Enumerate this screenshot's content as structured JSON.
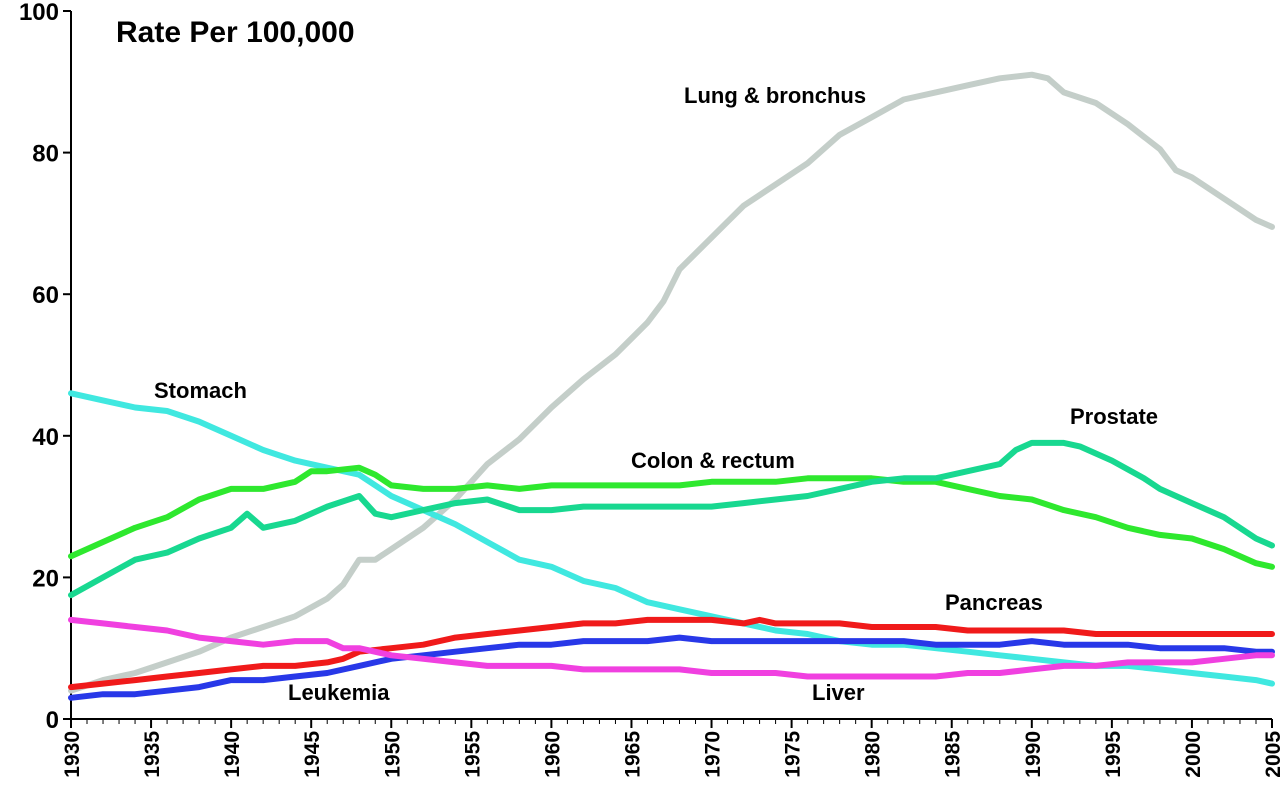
{
  "chart_data": {
    "type": "line",
    "title": "Rate Per 100,000",
    "xlabel": "",
    "ylabel": "",
    "xlim": [
      1930,
      2005
    ],
    "ylim": [
      0,
      100
    ],
    "y_ticks": [
      0,
      20,
      40,
      60,
      80,
      100
    ],
    "x_tick_labels": [
      "1930",
      "1935",
      "1940",
      "1945",
      "1950",
      "1955",
      "1960",
      "1965",
      "1970",
      "1975",
      "1980",
      "1985",
      "1990",
      "1995",
      "2000",
      "2005"
    ],
    "grid": false,
    "legend": "none (direct labels)",
    "series": [
      {
        "name": "Lung & bronchus",
        "color": "#c4cec9",
        "points": [
          [
            1930,
            4
          ],
          [
            1932,
            5.5
          ],
          [
            1934,
            6.5
          ],
          [
            1936,
            8
          ],
          [
            1938,
            9.5
          ],
          [
            1940,
            11.5
          ],
          [
            1942,
            13
          ],
          [
            1944,
            14.5
          ],
          [
            1946,
            17
          ],
          [
            1947,
            19
          ],
          [
            1948,
            22.5
          ],
          [
            1949,
            22.5
          ],
          [
            1950,
            24
          ],
          [
            1952,
            27
          ],
          [
            1954,
            31
          ],
          [
            1956,
            36
          ],
          [
            1958,
            39.5
          ],
          [
            1960,
            44
          ],
          [
            1962,
            48
          ],
          [
            1964,
            51.5
          ],
          [
            1966,
            56
          ],
          [
            1967,
            59
          ],
          [
            1968,
            63.5
          ],
          [
            1970,
            68
          ],
          [
            1972,
            72.5
          ],
          [
            1974,
            75.5
          ],
          [
            1976,
            78.5
          ],
          [
            1978,
            82.5
          ],
          [
            1980,
            85
          ],
          [
            1982,
            87.5
          ],
          [
            1984,
            88.5
          ],
          [
            1986,
            89.5
          ],
          [
            1988,
            90.5
          ],
          [
            1990,
            91
          ],
          [
            1991,
            90.5
          ],
          [
            1992,
            88.5
          ],
          [
            1994,
            87
          ],
          [
            1996,
            84
          ],
          [
            1998,
            80.5
          ],
          [
            1999,
            77.5
          ],
          [
            2000,
            76.5
          ],
          [
            2002,
            73.5
          ],
          [
            2004,
            70.5
          ],
          [
            2005,
            69.5
          ]
        ]
      },
      {
        "name": "Stomach",
        "color": "#40e8e0",
        "points": [
          [
            1930,
            46
          ],
          [
            1932,
            45
          ],
          [
            1934,
            44
          ],
          [
            1936,
            43.5
          ],
          [
            1938,
            42
          ],
          [
            1940,
            40
          ],
          [
            1942,
            38
          ],
          [
            1944,
            36.5
          ],
          [
            1946,
            35.5
          ],
          [
            1948,
            34.5
          ],
          [
            1949,
            33
          ],
          [
            1950,
            31.5
          ],
          [
            1952,
            29.5
          ],
          [
            1954,
            27.5
          ],
          [
            1956,
            25
          ],
          [
            1958,
            22.5
          ],
          [
            1960,
            21.5
          ],
          [
            1962,
            19.5
          ],
          [
            1964,
            18.5
          ],
          [
            1966,
            16.5
          ],
          [
            1968,
            15.5
          ],
          [
            1970,
            14.5
          ],
          [
            1972,
            13.5
          ],
          [
            1974,
            12.5
          ],
          [
            1976,
            12
          ],
          [
            1978,
            11
          ],
          [
            1980,
            10.5
          ],
          [
            1982,
            10.5
          ],
          [
            1984,
            10
          ],
          [
            1986,
            9.5
          ],
          [
            1988,
            9
          ],
          [
            1990,
            8.5
          ],
          [
            1992,
            8
          ],
          [
            1994,
            7.5
          ],
          [
            1996,
            7.5
          ],
          [
            1998,
            7
          ],
          [
            2000,
            6.5
          ],
          [
            2002,
            6
          ],
          [
            2004,
            5.5
          ],
          [
            2005,
            5
          ]
        ]
      },
      {
        "name": "Colon & rectum",
        "color": "#2ee82e",
        "points": [
          [
            1930,
            23
          ],
          [
            1932,
            25
          ],
          [
            1934,
            27
          ],
          [
            1936,
            28.5
          ],
          [
            1938,
            31
          ],
          [
            1940,
            32.5
          ],
          [
            1942,
            32.5
          ],
          [
            1944,
            33.5
          ],
          [
            1945,
            35
          ],
          [
            1946,
            35
          ],
          [
            1948,
            35.5
          ],
          [
            1949,
            34.5
          ],
          [
            1950,
            33
          ],
          [
            1952,
            32.5
          ],
          [
            1954,
            32.5
          ],
          [
            1956,
            33
          ],
          [
            1958,
            32.5
          ],
          [
            1960,
            33
          ],
          [
            1962,
            33
          ],
          [
            1964,
            33
          ],
          [
            1966,
            33
          ],
          [
            1968,
            33
          ],
          [
            1970,
            33.5
          ],
          [
            1972,
            33.5
          ],
          [
            1974,
            33.5
          ],
          [
            1976,
            34
          ],
          [
            1978,
            34
          ],
          [
            1980,
            34
          ],
          [
            1982,
            33.5
          ],
          [
            1984,
            33.5
          ],
          [
            1986,
            32.5
          ],
          [
            1988,
            31.5
          ],
          [
            1990,
            31
          ],
          [
            1992,
            29.5
          ],
          [
            1994,
            28.5
          ],
          [
            1996,
            27
          ],
          [
            1998,
            26
          ],
          [
            2000,
            25.5
          ],
          [
            2002,
            24
          ],
          [
            2004,
            22
          ],
          [
            2005,
            21.5
          ]
        ]
      },
      {
        "name": "Prostate",
        "color": "#18d890",
        "points": [
          [
            1930,
            17.5
          ],
          [
            1932,
            20
          ],
          [
            1934,
            22.5
          ],
          [
            1936,
            23.5
          ],
          [
            1938,
            25.5
          ],
          [
            1940,
            27
          ],
          [
            1941,
            29
          ],
          [
            1942,
            27
          ],
          [
            1944,
            28
          ],
          [
            1946,
            30
          ],
          [
            1948,
            31.5
          ],
          [
            1949,
            29
          ],
          [
            1950,
            28.5
          ],
          [
            1952,
            29.5
          ],
          [
            1954,
            30.5
          ],
          [
            1956,
            31
          ],
          [
            1958,
            29.5
          ],
          [
            1960,
            29.5
          ],
          [
            1962,
            30
          ],
          [
            1964,
            30
          ],
          [
            1966,
            30
          ],
          [
            1968,
            30
          ],
          [
            1970,
            30
          ],
          [
            1972,
            30.5
          ],
          [
            1974,
            31
          ],
          [
            1976,
            31.5
          ],
          [
            1978,
            32.5
          ],
          [
            1980,
            33.5
          ],
          [
            1982,
            34
          ],
          [
            1984,
            34
          ],
          [
            1986,
            35
          ],
          [
            1988,
            36
          ],
          [
            1989,
            38
          ],
          [
            1990,
            39
          ],
          [
            1992,
            39
          ],
          [
            1993,
            38.5
          ],
          [
            1995,
            36.5
          ],
          [
            1997,
            34
          ],
          [
            1998,
            32.5
          ],
          [
            2000,
            30.5
          ],
          [
            2002,
            28.5
          ],
          [
            2004,
            25.5
          ],
          [
            2005,
            24.5
          ]
        ]
      },
      {
        "name": "Pancreas",
        "color": "#f01a1a",
        "points": [
          [
            1930,
            4.5
          ],
          [
            1932,
            5
          ],
          [
            1934,
            5.5
          ],
          [
            1936,
            6
          ],
          [
            1938,
            6.5
          ],
          [
            1940,
            7
          ],
          [
            1942,
            7.5
          ],
          [
            1944,
            7.5
          ],
          [
            1946,
            8
          ],
          [
            1947,
            8.5
          ],
          [
            1948,
            9.5
          ],
          [
            1950,
            10
          ],
          [
            1952,
            10.5
          ],
          [
            1954,
            11.5
          ],
          [
            1956,
            12
          ],
          [
            1958,
            12.5
          ],
          [
            1960,
            13
          ],
          [
            1962,
            13.5
          ],
          [
            1964,
            13.5
          ],
          [
            1966,
            14
          ],
          [
            1968,
            14
          ],
          [
            1970,
            14
          ],
          [
            1972,
            13.5
          ],
          [
            1973,
            14
          ],
          [
            1974,
            13.5
          ],
          [
            1976,
            13.5
          ],
          [
            1978,
            13.5
          ],
          [
            1980,
            13
          ],
          [
            1982,
            13
          ],
          [
            1984,
            13
          ],
          [
            1986,
            12.5
          ],
          [
            1988,
            12.5
          ],
          [
            1990,
            12.5
          ],
          [
            1992,
            12.5
          ],
          [
            1994,
            12
          ],
          [
            1996,
            12
          ],
          [
            1998,
            12
          ],
          [
            2000,
            12
          ],
          [
            2002,
            12
          ],
          [
            2004,
            12
          ],
          [
            2005,
            12
          ]
        ]
      },
      {
        "name": "Leukemia",
        "color": "#2838e8",
        "points": [
          [
            1930,
            3
          ],
          [
            1932,
            3.5
          ],
          [
            1934,
            3.5
          ],
          [
            1936,
            4
          ],
          [
            1938,
            4.5
          ],
          [
            1940,
            5.5
          ],
          [
            1942,
            5.5
          ],
          [
            1944,
            6
          ],
          [
            1946,
            6.5
          ],
          [
            1948,
            7.5
          ],
          [
            1950,
            8.5
          ],
          [
            1952,
            9
          ],
          [
            1954,
            9.5
          ],
          [
            1956,
            10
          ],
          [
            1958,
            10.5
          ],
          [
            1960,
            10.5
          ],
          [
            1962,
            11
          ],
          [
            1964,
            11
          ],
          [
            1966,
            11
          ],
          [
            1968,
            11.5
          ],
          [
            1970,
            11
          ],
          [
            1972,
            11
          ],
          [
            1974,
            11
          ],
          [
            1976,
            11
          ],
          [
            1978,
            11
          ],
          [
            1980,
            11
          ],
          [
            1982,
            11
          ],
          [
            1984,
            10.5
          ],
          [
            1986,
            10.5
          ],
          [
            1988,
            10.5
          ],
          [
            1990,
            11
          ],
          [
            1992,
            10.5
          ],
          [
            1994,
            10.5
          ],
          [
            1996,
            10.5
          ],
          [
            1998,
            10
          ],
          [
            2000,
            10
          ],
          [
            2002,
            10
          ],
          [
            2004,
            9.5
          ],
          [
            2005,
            9.5
          ]
        ]
      },
      {
        "name": "Liver",
        "color": "#f040e0",
        "points": [
          [
            1930,
            14
          ],
          [
            1932,
            13.5
          ],
          [
            1934,
            13
          ],
          [
            1936,
            12.5
          ],
          [
            1938,
            11.5
          ],
          [
            1940,
            11
          ],
          [
            1942,
            10.5
          ],
          [
            1944,
            11
          ],
          [
            1946,
            11
          ],
          [
            1947,
            10
          ],
          [
            1948,
            10
          ],
          [
            1950,
            9
          ],
          [
            1952,
            8.5
          ],
          [
            1954,
            8
          ],
          [
            1956,
            7.5
          ],
          [
            1958,
            7.5
          ],
          [
            1960,
            7.5
          ],
          [
            1962,
            7
          ],
          [
            1964,
            7
          ],
          [
            1966,
            7
          ],
          [
            1968,
            7
          ],
          [
            1970,
            6.5
          ],
          [
            1972,
            6.5
          ],
          [
            1974,
            6.5
          ],
          [
            1976,
            6
          ],
          [
            1978,
            6
          ],
          [
            1980,
            6
          ],
          [
            1982,
            6
          ],
          [
            1984,
            6
          ],
          [
            1986,
            6.5
          ],
          [
            1988,
            6.5
          ],
          [
            1990,
            7
          ],
          [
            1992,
            7.5
          ],
          [
            1994,
            7.5
          ],
          [
            1996,
            8
          ],
          [
            1998,
            8
          ],
          [
            2000,
            8
          ],
          [
            2002,
            8.5
          ],
          [
            2004,
            9
          ],
          [
            2005,
            9
          ]
        ]
      }
    ]
  }
}
